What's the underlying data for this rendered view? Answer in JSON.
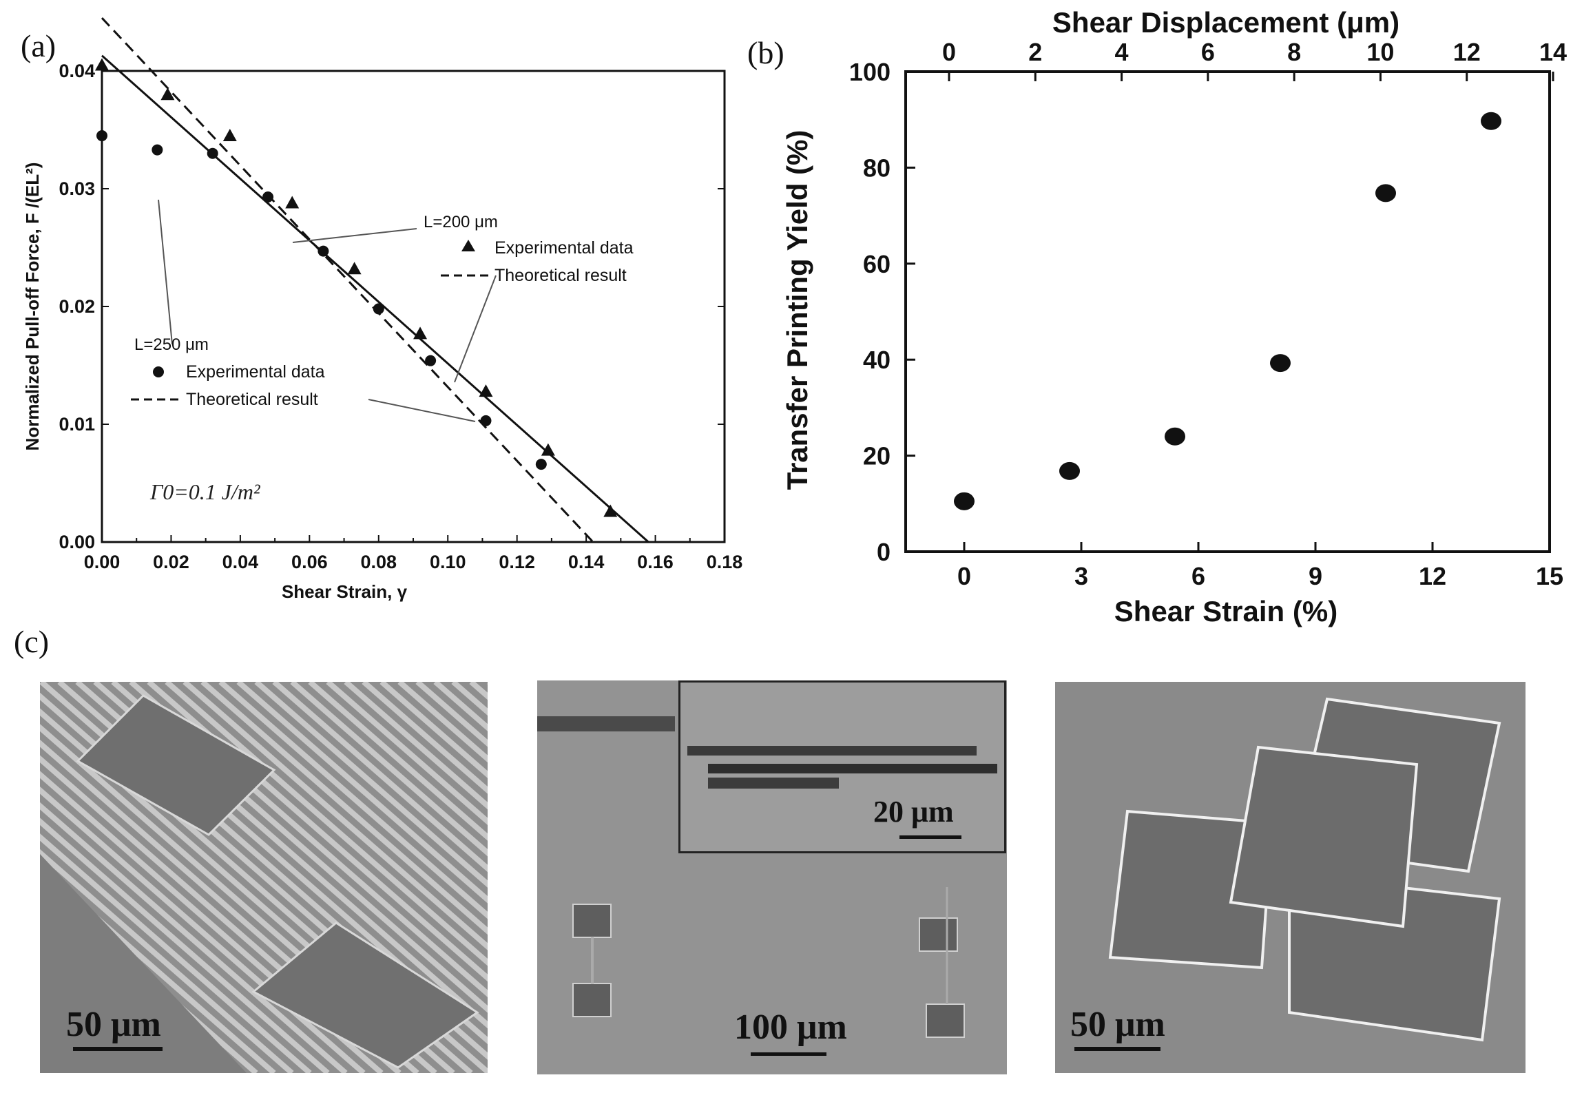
{
  "panels": {
    "a": "(a)",
    "b": "(b)",
    "c": "(c)"
  },
  "chart_data": [
    {
      "type": "scatter",
      "xlabel": "Shear Strain, γ",
      "ylabel": "Normalized Pull-off Force, F /(EL²)",
      "xlim": [
        0.0,
        0.18
      ],
      "ylim": [
        0.0,
        0.04
      ],
      "x_ticks": [
        "0.00",
        "0.02",
        "0.04",
        "0.06",
        "0.08",
        "0.10",
        "0.12",
        "0.14",
        "0.16",
        "0.18"
      ],
      "y_ticks": [
        "0.00",
        "0.01",
        "0.02",
        "0.03",
        "0.04"
      ],
      "annotation_gamma": "Γ0=0.1 J/m²",
      "group_250": {
        "label": "L=250 μm",
        "exp_label": "Experimental data",
        "theory_label": "Theoretical result",
        "exp_points": [
          [
            0.0,
            0.0345
          ],
          [
            0.016,
            0.0333
          ],
          [
            0.032,
            0.033
          ],
          [
            0.048,
            0.0293
          ],
          [
            0.064,
            0.0247
          ],
          [
            0.08,
            0.0198
          ],
          [
            0.095,
            0.0154
          ],
          [
            0.111,
            0.0103
          ],
          [
            0.127,
            0.0066
          ]
        ],
        "theory_line": [
          [
            0.0,
            0.0413
          ],
          [
            0.158,
            0.0
          ]
        ]
      },
      "group_200": {
        "label": "L=200 μm",
        "exp_label": "Experimental data",
        "theory_label": "Theoretical result",
        "exp_points": [
          [
            0.0,
            0.0405
          ],
          [
            0.019,
            0.038
          ],
          [
            0.037,
            0.0345
          ],
          [
            0.055,
            0.0288
          ],
          [
            0.073,
            0.0232
          ],
          [
            0.092,
            0.0177
          ],
          [
            0.111,
            0.0128
          ],
          [
            0.129,
            0.0078
          ],
          [
            0.147,
            0.0026
          ]
        ],
        "theory_line": [
          [
            0.0,
            0.0445
          ],
          [
            0.142,
            0.0
          ]
        ]
      }
    },
    {
      "type": "scatter",
      "xlabel": "Shear Strain (%)",
      "x2label": "Shear Displacement (μm)",
      "ylabel": "Transfer Printing Yield (%)",
      "xlim": [
        -1.5,
        15
      ],
      "ylim": [
        0,
        100
      ],
      "x_ticks": [
        "0",
        "3",
        "6",
        "9",
        "12",
        "15"
      ],
      "x2_ticks": [
        "0",
        "2",
        "4",
        "6",
        "8",
        "10",
        "12",
        "14"
      ],
      "y_ticks": [
        "0",
        "20",
        "40",
        "60",
        "80",
        "100"
      ],
      "points": [
        [
          0.0,
          10.5
        ],
        [
          2.7,
          16.8
        ],
        [
          5.4,
          24.0
        ],
        [
          8.1,
          39.3
        ],
        [
          10.8,
          74.7
        ],
        [
          13.5,
          89.7
        ]
      ]
    }
  ],
  "sem": {
    "left_scale": "50 μm",
    "middle_scale": "100 μm",
    "middle_inset_scale": "20 μm",
    "right_scale": "50 μm"
  },
  "colors": {
    "ink": "#111111",
    "sem_bg": "#8a8a8a"
  }
}
